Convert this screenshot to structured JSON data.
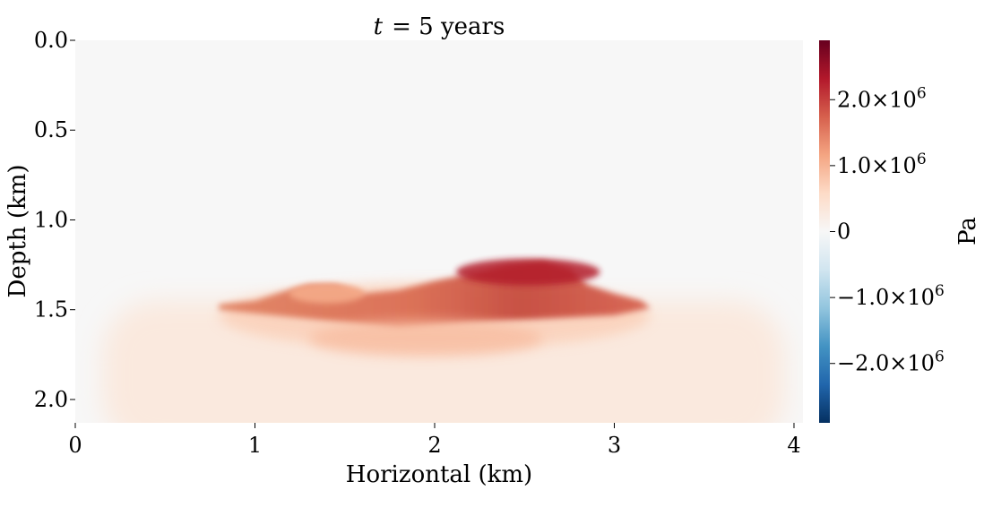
{
  "chart_data": {
    "type": "heatmap",
    "title_var": "t",
    "title_rest": "= 5 years",
    "xlabel": "Horizontal (km)",
    "ylabel": "Depth (km)",
    "xlim": [
      0,
      4.05
    ],
    "ylim": [
      0,
      2.13
    ],
    "y_inverted": true,
    "x_ticks": [
      0,
      1,
      2,
      3,
      4
    ],
    "x_tick_labels": [
      "0",
      "1",
      "2",
      "3",
      "4"
    ],
    "y_ticks": [
      0.0,
      0.5,
      1.0,
      1.5,
      2.0
    ],
    "y_tick_labels": [
      "0.0",
      "0.5",
      "1.0",
      "1.5",
      "2.0"
    ],
    "colorbar": {
      "label": "Pa",
      "range": [
        -2900000,
        2900000
      ],
      "colormap": "RdBu_r",
      "stops": [
        "#053061",
        "#2166ac",
        "#4393c3",
        "#92c5de",
        "#d1e5f0",
        "#f7f7f7",
        "#fddbc7",
        "#f4a582",
        "#d6604d",
        "#b2182b",
        "#67001f"
      ],
      "ticks": [
        -2000000,
        -1000000,
        0,
        1000000,
        2000000
      ],
      "tick_labels": [
        {
          "mantissa": "−2.0",
          "exponent": "6"
        },
        {
          "mantissa": "−1.0",
          "exponent": "6"
        },
        {
          "mantissa": "0",
          "exponent": ""
        },
        {
          "mantissa": "1.0",
          "exponent": "6"
        },
        {
          "mantissa": "2.0",
          "exponent": "6"
        }
      ]
    },
    "field": {
      "description_units": "Pa",
      "background_value": 0,
      "lower_zone": {
        "x_range": [
          0.15,
          3.95
        ],
        "depth_top": 1.45,
        "depth_bottom": 2.13,
        "value": 300000
      },
      "plume_body": {
        "x_range": [
          0.8,
          3.2
        ],
        "depth_top": 1.35,
        "depth_bottom": 1.72,
        "value": 700000
      },
      "crest": {
        "x_range": [
          1.95,
          2.85
        ],
        "depth_top": 1.23,
        "depth_bottom": 1.45,
        "peak_value": 2300000
      },
      "left_bump": {
        "x_center": 1.4,
        "depth_top": 1.36,
        "value": 1100000
      }
    }
  }
}
